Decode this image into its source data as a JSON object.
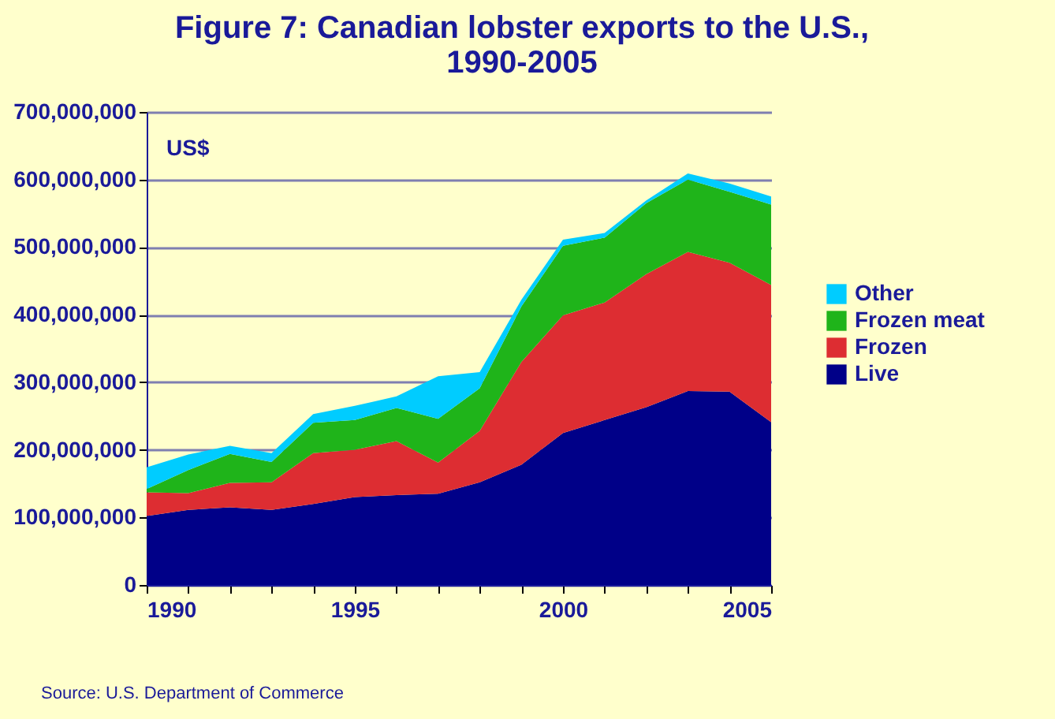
{
  "chart_data": {
    "type": "area",
    "title": "Figure 7: Canadian lobster exports to the U.S., 1990-2005",
    "ylabel": "US$",
    "stacked": true,
    "x": [
      1990,
      1991,
      1992,
      1993,
      1994,
      1995,
      1996,
      1997,
      1998,
      1999,
      2000,
      2001,
      2002,
      2003,
      2004,
      2005
    ],
    "series": [
      {
        "name": "Live",
        "color": "#000088",
        "values": [
          102000000,
          111000000,
          115000000,
          111000000,
          120000000,
          130000000,
          133000000,
          135000000,
          152000000,
          178000000,
          225000000,
          244000000,
          263000000,
          287000000,
          286000000,
          241000000
        ]
      },
      {
        "name": "Frozen",
        "color": "#dd2d32",
        "values": [
          35000000,
          25000000,
          36000000,
          41000000,
          75000000,
          70000000,
          80000000,
          46000000,
          76000000,
          152000000,
          174000000,
          174000000,
          197000000,
          206000000,
          191000000,
          203000000
        ]
      },
      {
        "name": "Frozen meat",
        "color": "#1fb41a",
        "values": [
          5000000,
          34000000,
          43000000,
          30000000,
          45000000,
          44000000,
          49000000,
          65000000,
          63000000,
          82000000,
          103000000,
          96000000,
          105000000,
          107000000,
          105000000,
          119000000
        ]
      },
      {
        "name": "Other",
        "color": "#00ccff",
        "values": [
          32000000,
          23000000,
          12000000,
          13000000,
          13000000,
          21000000,
          17000000,
          63000000,
          24000000,
          10000000,
          9000000,
          7000000,
          4000000,
          9000000,
          12000000,
          12000000
        ]
      }
    ],
    "xlim": [
      1990,
      2005
    ],
    "xticks": [
      1990,
      {
        "value": 1991,
        "label": null
      },
      {
        "value": 1992,
        "label": null
      },
      {
        "value": 1993,
        "label": null
      },
      {
        "value": 1994,
        "label": null
      },
      1995,
      {
        "value": 1996,
        "label": null
      },
      {
        "value": 1997,
        "label": null
      },
      {
        "value": 1998,
        "label": null
      },
      {
        "value": 1999,
        "label": null
      },
      2000,
      {
        "value": 2001,
        "label": null
      },
      {
        "value": 2002,
        "label": null
      },
      {
        "value": 2003,
        "label": null
      },
      {
        "value": 2004,
        "label": null
      },
      2005
    ],
    "ylim": [
      0,
      700000000
    ],
    "yticks": [
      0,
      {
        "value": 100000000,
        "label": "100,000,000"
      },
      {
        "value": 200000000,
        "label": "200,000,000"
      },
      {
        "value": 300000000,
        "label": "300,000,000"
      },
      {
        "value": 400000000,
        "label": "400,000,000"
      },
      {
        "value": 500000000,
        "label": "500,000,000"
      },
      {
        "value": 600000000,
        "label": "600,000,000"
      },
      {
        "value": 700000000,
        "label": "700,000,000"
      }
    ],
    "grid": "y",
    "legend": "right",
    "annotations": [
      "Source: U.S. Department of Commerce"
    ]
  }
}
